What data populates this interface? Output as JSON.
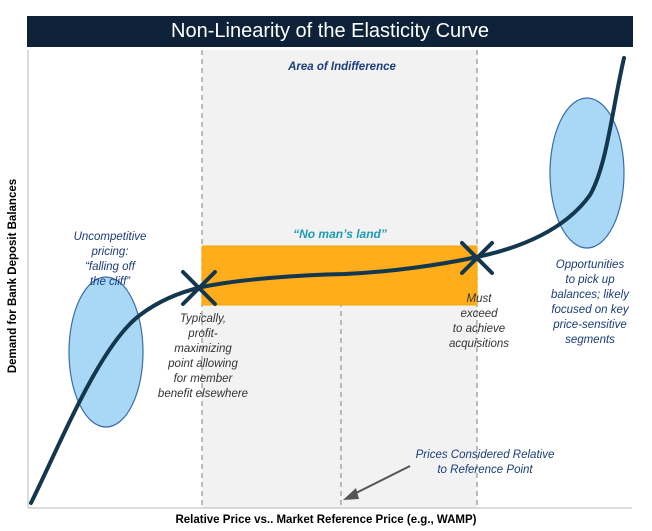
{
  "title": "Non-Linearity of the Elasticity Curve",
  "labels": {
    "area_of_indifference": "Area of Indifference",
    "no_mans_land": "“No man’s land”",
    "uncompetitive": "Uncompetitive\npricing:\n“falling off\nthe cliff”",
    "typically": "Typically,\nprofit-\nmaximizing\npoint allowing\nfor member\nbenefit elsewhere",
    "must_exceed": "Must\nexceed\nto achieve\nacquisitions",
    "opportunities": "Opportunities\nto pick up\nbalances; likely\nfocused on key\nprice-sensitive\nsegments",
    "prices_considered": "Prices Considered Relative\nto Reference Point"
  },
  "axes": {
    "x_label": "Relative Price vs.. Market Reference Price (e.g., WAMP)",
    "y_label": "Demand for Bank Deposit Balances"
  },
  "colors": {
    "title_bg": "#0d2238",
    "curve": "#13374f",
    "indifference_fill": "#f2f2f2",
    "band_fill": "#ffad1a",
    "band_border": "#f5a800",
    "ellipse_fill": "#a9d7f6",
    "ellipse_stroke": "#3a6da8",
    "label_blue": "#1a3c78",
    "label_teal": "#1c9bb4",
    "marker": "#13374f"
  }
}
